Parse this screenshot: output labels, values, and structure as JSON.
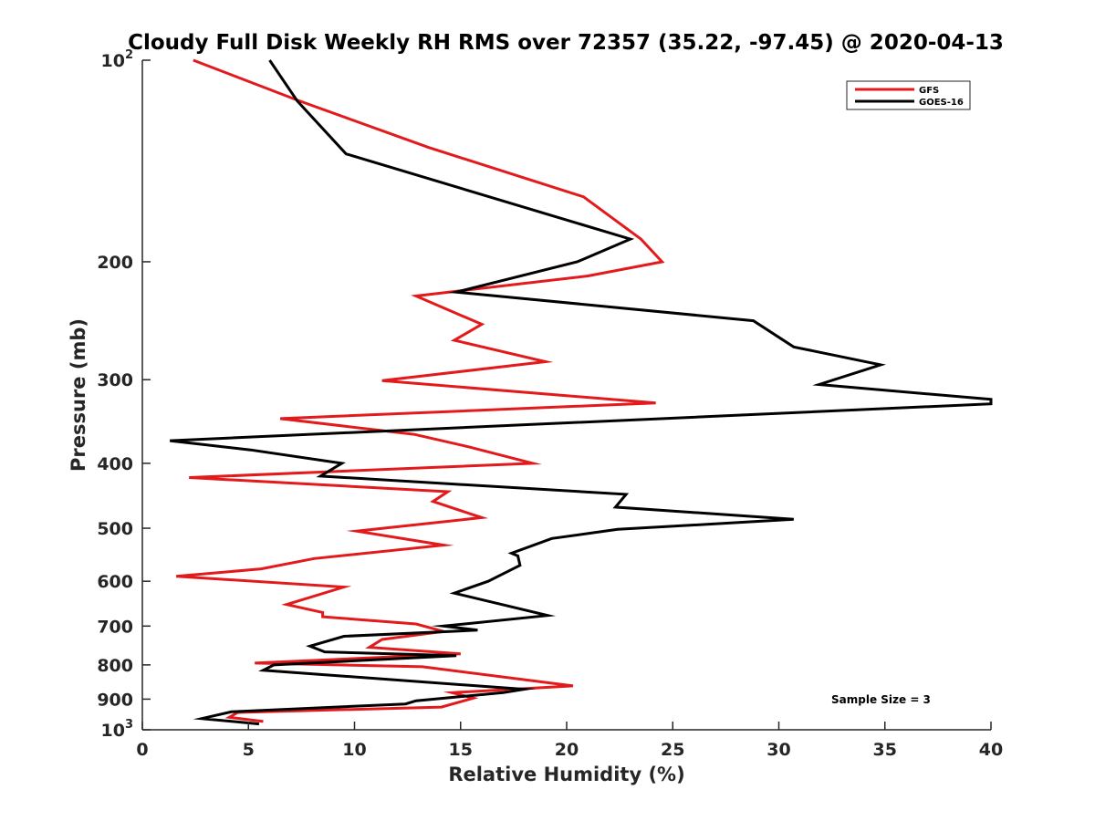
{
  "chart_data": {
    "type": "line",
    "title": "Cloudy Full Disk Weekly RH RMS over 72357 (35.22, -97.45) @ 2020-04-13",
    "xlabel": "Relative Humidity (%)",
    "ylabel": "Pressure (mb)",
    "xlim": [
      0,
      40
    ],
    "ylim": [
      100,
      1000
    ],
    "y_scale": "log",
    "y_reversed": true,
    "grid": false,
    "legend_position": "top-right",
    "x_ticks": [
      "0",
      "5",
      "10",
      "15",
      "20",
      "25",
      "30",
      "35",
      "40"
    ],
    "y_ticks": [
      {
        "value": 100,
        "base": "10",
        "exp": "2",
        "label": ""
      },
      {
        "value": 200,
        "base": "",
        "exp": "",
        "label": "200"
      },
      {
        "value": 300,
        "base": "",
        "exp": "",
        "label": "300"
      },
      {
        "value": 400,
        "base": "",
        "exp": "",
        "label": "400"
      },
      {
        "value": 500,
        "base": "",
        "exp": "",
        "label": "500"
      },
      {
        "value": 600,
        "base": "",
        "exp": "",
        "label": "600"
      },
      {
        "value": 700,
        "base": "",
        "exp": "",
        "label": "700"
      },
      {
        "value": 800,
        "base": "",
        "exp": "",
        "label": "800"
      },
      {
        "value": 900,
        "base": "",
        "exp": "",
        "label": "900"
      },
      {
        "value": 1000,
        "base": "10",
        "exp": "3",
        "label": ""
      }
    ],
    "annotation": "Sample Size = 3",
    "series": [
      {
        "name": "GFS",
        "color": "#e31a1c",
        "points": [
          [
            2.4,
            100
          ],
          [
            7.4,
            115
          ],
          [
            13.5,
            135
          ],
          [
            20.8,
            160
          ],
          [
            23.5,
            185
          ],
          [
            24.5,
            200
          ],
          [
            21.0,
            210
          ],
          [
            12.9,
            225
          ],
          [
            16.0,
            248
          ],
          [
            14.7,
            262
          ],
          [
            19.0,
            282
          ],
          [
            11.3,
            301
          ],
          [
            24.2,
            325
          ],
          [
            6.5,
            343
          ],
          [
            12.8,
            362
          ],
          [
            15.4,
            378
          ],
          [
            18.4,
            400
          ],
          [
            2.2,
            420
          ],
          [
            14.4,
            441
          ],
          [
            13.7,
            456
          ],
          [
            16.0,
            482
          ],
          [
            10.1,
            505
          ],
          [
            14.2,
            530
          ],
          [
            8.1,
            555
          ],
          [
            5.6,
            575
          ],
          [
            1.6,
            590
          ],
          [
            9.5,
            612
          ],
          [
            6.8,
            650
          ],
          [
            8.5,
            668
          ],
          [
            8.5,
            678
          ],
          [
            12.9,
            695
          ],
          [
            14.2,
            713
          ],
          [
            11.3,
            733
          ],
          [
            10.7,
            753
          ],
          [
            15.0,
            770
          ],
          [
            5.3,
            795
          ],
          [
            13.2,
            805
          ],
          [
            20.3,
            860
          ],
          [
            14.6,
            880
          ],
          [
            15.6,
            897
          ],
          [
            14.1,
            925
          ],
          [
            4.5,
            942
          ],
          [
            4.1,
            958
          ],
          [
            5.7,
            972
          ]
        ]
      },
      {
        "name": "GOES-16",
        "color": "#000000",
        "points": [
          [
            6.0,
            100
          ],
          [
            7.3,
            115
          ],
          [
            9.6,
            138
          ],
          [
            23.0,
            185
          ],
          [
            20.5,
            200
          ],
          [
            14.8,
            222
          ],
          [
            28.8,
            245
          ],
          [
            30.7,
            268
          ],
          [
            34.8,
            285
          ],
          [
            31.9,
            305
          ],
          [
            40.0,
            321
          ],
          [
            40.0,
            326
          ],
          [
            1.3,
            370
          ],
          [
            5.1,
            382
          ],
          [
            9.4,
            400
          ],
          [
            8.4,
            418
          ],
          [
            22.8,
            445
          ],
          [
            22.3,
            465
          ],
          [
            30.7,
            485
          ],
          [
            22.4,
            502
          ],
          [
            19.3,
            518
          ],
          [
            17.4,
            545
          ],
          [
            17.7,
            550
          ],
          [
            17.8,
            568
          ],
          [
            16.3,
            600
          ],
          [
            14.7,
            625
          ],
          [
            19.1,
            675
          ],
          [
            14.2,
            700
          ],
          [
            15.8,
            710
          ],
          [
            9.5,
            725
          ],
          [
            7.9,
            750
          ],
          [
            8.6,
            765
          ],
          [
            14.8,
            775
          ],
          [
            6.2,
            800
          ],
          [
            5.7,
            815
          ],
          [
            18.0,
            870
          ],
          [
            17.0,
            880
          ],
          [
            12.9,
            905
          ],
          [
            12.4,
            915
          ],
          [
            4.2,
            940
          ],
          [
            2.8,
            962
          ],
          [
            5.5,
            980
          ]
        ]
      }
    ]
  }
}
